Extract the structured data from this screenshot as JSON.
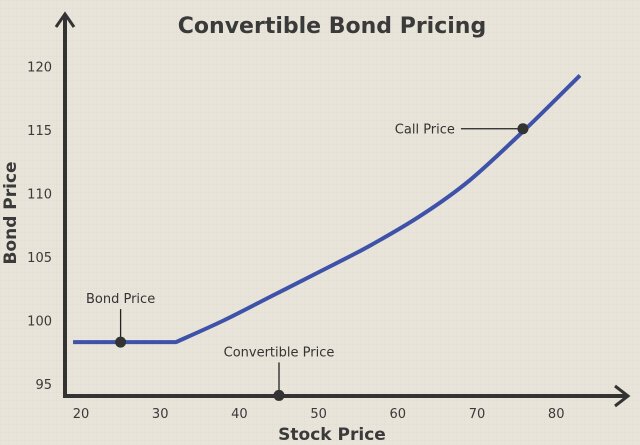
{
  "chart_data": {
    "type": "line",
    "title": "Convertible Bond Pricing",
    "xlabel": "Stock Price",
    "ylabel": "Bond Price",
    "xlim": [
      18,
      88
    ],
    "ylim": [
      94,
      122
    ],
    "x_ticks": [
      20,
      30,
      40,
      50,
      60,
      70,
      80
    ],
    "y_ticks": [
      95,
      100,
      105,
      110,
      115,
      120
    ],
    "grid": true,
    "series": [
      {
        "color": "#3d52a8",
        "x": [
          19,
          32,
          38,
          44,
          50,
          56.5,
          63,
          69,
          76,
          83
        ],
        "y": [
          98.3,
          98.3,
          100.0,
          101.9,
          103.8,
          105.9,
          108.3,
          111.0,
          115.0,
          119.3
        ]
      }
    ],
    "annotations": [
      {
        "label": "Bond Price",
        "x": 25,
        "y": 98.3,
        "placement": "above"
      },
      {
        "label": "Convertible Price",
        "x": 45,
        "y": 94.1,
        "placement": "above"
      },
      {
        "label": "Call Price",
        "x": 75.8,
        "y": 115.1,
        "placement": "left"
      }
    ],
    "colors": {
      "background": "#e9e4da",
      "axis": "#333333",
      "line": "#3d52a8",
      "marker": "#333333"
    }
  }
}
